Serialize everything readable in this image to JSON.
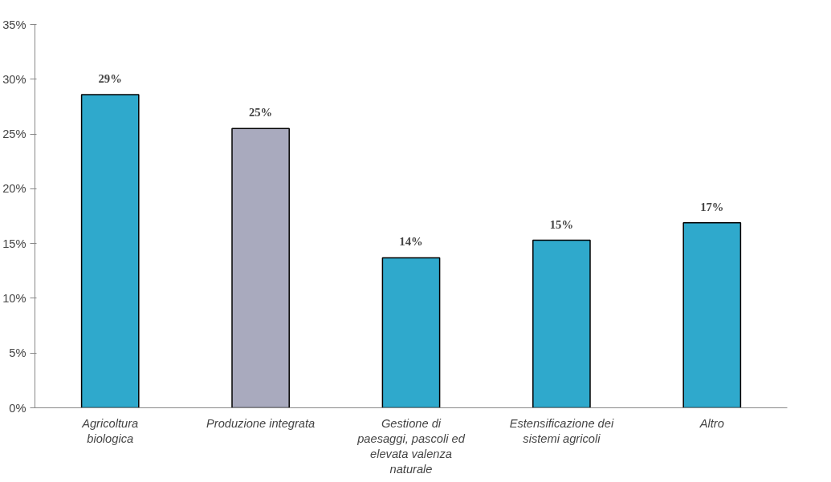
{
  "chart_data": {
    "type": "bar",
    "categories": [
      "Agricoltura biologica",
      "Produzione integrata",
      "Gestione di paesaggi, pascoli ed elevata valenza naturale",
      "Estensificazione dei sistemi agricoli",
      "Altro"
    ],
    "values": [
      28.6,
      25.5,
      13.7,
      15.3,
      16.9
    ],
    "value_labels": [
      "29%",
      "25%",
      "14%",
      "15%",
      "17%"
    ],
    "colors": [
      "#2fa9cc",
      "#a9aabe",
      "#2fa9cc",
      "#2fa9cc",
      "#2fa9cc"
    ],
    "ylim": [
      0,
      35
    ],
    "yticks": [
      {
        "value": 0,
        "label": "0%"
      },
      {
        "value": 5,
        "label": "5%"
      },
      {
        "value": 10,
        "label": "10%"
      },
      {
        "value": 15,
        "label": "15%"
      },
      {
        "value": 20,
        "label": "20%"
      },
      {
        "value": 25,
        "label": "25%"
      },
      {
        "value": 30,
        "label": "30%"
      },
      {
        "value": 35,
        "label": "35%"
      }
    ],
    "grid": false
  }
}
